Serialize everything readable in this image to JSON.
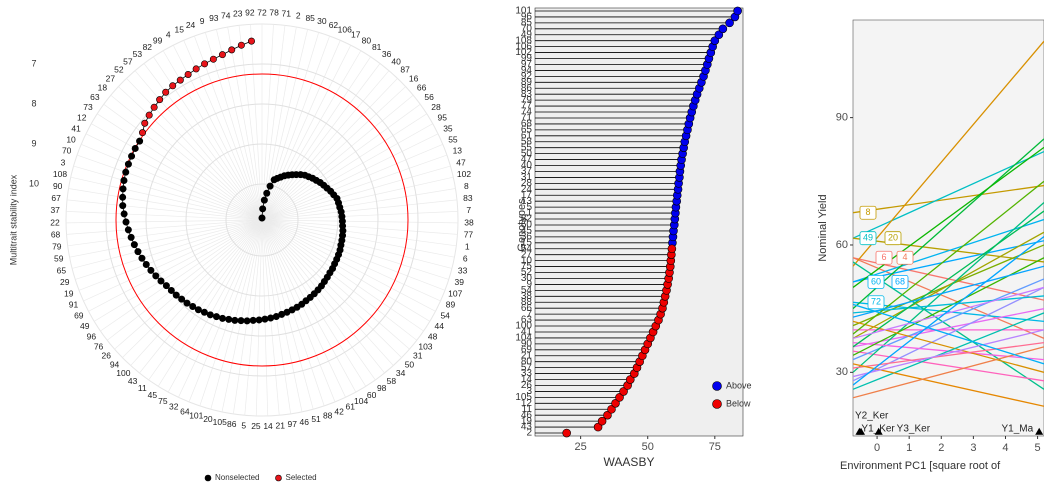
{
  "chart_data": [
    {
      "type": "polar",
      "ylabel": "Multitrait stability index",
      "categories": [
        "72",
        "78",
        "71",
        "2",
        "85",
        "30",
        "62",
        "106",
        "17",
        "80",
        "81",
        "36",
        "40",
        "87",
        "16",
        "66",
        "56",
        "28",
        "95",
        "35",
        "55",
        "13",
        "47",
        "102",
        "8",
        "83",
        "7",
        "38",
        "77",
        "1",
        "6",
        "33",
        "39",
        "107",
        "89",
        "54",
        "44",
        "48",
        "103",
        "31",
        "50",
        "34",
        "58",
        "98",
        "60",
        "104",
        "61",
        "42",
        "88",
        "51",
        "46",
        "97",
        "21",
        "14",
        "25",
        "5",
        "86",
        "105",
        "20",
        "101",
        "64",
        "32",
        "75",
        "45",
        "11",
        "43",
        "100",
        "94",
        "26",
        "76",
        "96",
        "49",
        "69",
        "91",
        "19",
        "29",
        "65",
        "59",
        "79",
        "68",
        "22",
        "37",
        "67",
        "90",
        "108",
        "3",
        "70",
        "10",
        "41",
        "12",
        "73",
        "63",
        "18",
        "27",
        "52",
        "57",
        "53",
        "82",
        "99",
        "4",
        "15",
        "24",
        "9",
        "93",
        "74",
        "23",
        "92"
      ],
      "series": [
        {
          "name": "Nonselected",
          "color": "#000000",
          "values": [
            10.85,
            10.62,
            10.4,
            10.22,
            10.03,
            9.85,
            9.79,
            9.73,
            9.66,
            9.6,
            9.54,
            9.48,
            9.41,
            9.35,
            9.31,
            9.26,
            9.22,
            9.17,
            9.13,
            9.09,
            9.04,
            9.0,
            8.95,
            8.94,
            8.93,
            8.91,
            8.9,
            8.89,
            8.88,
            8.86,
            8.85,
            8.84,
            8.83,
            8.81,
            8.8,
            8.79,
            8.78,
            8.76,
            8.75,
            8.73,
            8.71,
            8.68,
            8.66,
            8.64,
            8.62,
            8.6,
            8.57,
            8.55,
            8.53,
            8.51,
            8.49,
            8.46,
            8.44,
            8.42,
            8.4,
            8.38,
            8.35,
            8.33,
            8.3,
            8.28,
            8.25,
            8.23,
            8.2,
            8.18,
            8.15,
            8.13,
            8.1,
            8.08,
            8.05,
            8.03,
            8.0,
            7.95,
            7.9,
            7.85,
            7.8,
            7.75,
            7.7,
            7.65,
            7.6,
            7.55,
            7.5,
            7.45,
            7.4,
            7.37,
            7.34,
            7.31,
            7.29,
            7.28,
            7.27,
            7.26,
            7.26,
            null,
            null,
            null,
            null,
            null,
            null,
            null,
            null,
            null,
            null,
            null,
            null,
            null,
            null,
            null,
            null
          ]
        },
        {
          "name": "Selected",
          "color": "#e8151b",
          "values": [
            null,
            null,
            null,
            null,
            null,
            null,
            null,
            null,
            null,
            null,
            null,
            null,
            null,
            null,
            null,
            null,
            null,
            null,
            null,
            null,
            null,
            null,
            null,
            null,
            null,
            null,
            null,
            null,
            null,
            null,
            null,
            null,
            null,
            null,
            null,
            null,
            null,
            null,
            null,
            null,
            null,
            null,
            null,
            null,
            null,
            null,
            null,
            null,
            null,
            null,
            null,
            null,
            null,
            null,
            null,
            null,
            null,
            null,
            null,
            null,
            null,
            null,
            null,
            null,
            null,
            null,
            null,
            null,
            null,
            null,
            null,
            null,
            null,
            null,
            null,
            null,
            null,
            null,
            null,
            null,
            null,
            null,
            null,
            null,
            null,
            null,
            null,
            null,
            null,
            null,
            null,
            7.2,
            7.1,
            7.05,
            7.0,
            6.95,
            6.9,
            6.87,
            6.85,
            6.82,
            6.78,
            6.74,
            6.7,
            6.65,
            6.58,
            6.5,
            6.42
          ]
        }
      ],
      "ylim": [
        10.9,
        6
      ],
      "yticks": [
        7,
        8,
        9,
        10
      ],
      "cutoff": 7.25,
      "cutoff_color": "#ff0000",
      "legend": "bottom"
    },
    {
      "type": "dotplot",
      "xlabel": "WAASBY",
      "ylabel": "Genotypes",
      "categories": [
        "2",
        "43",
        "19",
        "46",
        "11",
        "12",
        "105",
        "3",
        "26",
        "14",
        "33",
        "57",
        "80",
        "21",
        "69",
        "90",
        "104",
        "41",
        "100",
        "63",
        "7",
        "66",
        "88",
        "38",
        "54",
        "9",
        "30",
        "52",
        "75",
        "10",
        "27",
        "64",
        "15",
        "36",
        "45",
        "60",
        "82",
        "1",
        "5",
        "13",
        "17",
        "24",
        "28",
        "31",
        "37",
        "40",
        "47",
        "50",
        "55",
        "58",
        "61",
        "65",
        "68",
        "71",
        "74",
        "77",
        "79",
        "83",
        "86",
        "89",
        "92",
        "94",
        "97",
        "99",
        "102",
        "106",
        "108",
        "49",
        "70",
        "85",
        "96",
        "101"
      ],
      "series": [
        {
          "name": "Above",
          "color": "#0000ee",
          "values": [
            null,
            null,
            null,
            null,
            null,
            null,
            null,
            null,
            null,
            null,
            null,
            null,
            null,
            null,
            null,
            null,
            null,
            null,
            null,
            null,
            null,
            null,
            null,
            null,
            null,
            null,
            null,
            null,
            null,
            null,
            null,
            null,
            59.2,
            59.4,
            59.6,
            59.9,
            60.1,
            60.3,
            60.5,
            60.8,
            61,
            61.3,
            61.5,
            61.8,
            62,
            62.3,
            62.6,
            63,
            63.4,
            63.8,
            64.3,
            64.8,
            65.3,
            65.8,
            66.4,
            67,
            67.7,
            68.4,
            69.2,
            70,
            70.8,
            71.5,
            72.2,
            72.8,
            73.5,
            74.2,
            75,
            76.5,
            78,
            80.5,
            82.5,
            83.5
          ]
        },
        {
          "name": "Below",
          "color": "#ee0000",
          "values": [
            19.8,
            31.5,
            33,
            35,
            36.5,
            38,
            39.5,
            41,
            42.5,
            43.5,
            45,
            46,
            47,
            48,
            49,
            50,
            51,
            52,
            53,
            54,
            54.8,
            55.5,
            56,
            56.5,
            57,
            57.4,
            57.8,
            58.1,
            58.4,
            58.6,
            58.8,
            59,
            null,
            null,
            null,
            null,
            null,
            null,
            null,
            null,
            null,
            null,
            null,
            null,
            null,
            null,
            null,
            null,
            null,
            null,
            null,
            null,
            null,
            null,
            null,
            null,
            null,
            null,
            null,
            null,
            null,
            null,
            null,
            null,
            null,
            null,
            null,
            null,
            null,
            null,
            null,
            null
          ]
        }
      ],
      "xlim": [
        8,
        85.5
      ],
      "xticks": [
        25,
        50,
        75
      ],
      "legend": "bottom-right"
    },
    {
      "type": "line",
      "xlabel": "Environment PC1 [square root of",
      "ylabel": "Nominal Yield",
      "x": [
        -0.75,
        5.2
      ],
      "series": [
        {
          "name": "8",
          "color": "#c49a00",
          "values": [
            67.6,
            74
          ]
        },
        {
          "name": "49",
          "color": "#00bfc4",
          "values": [
            61.6,
            82
          ]
        },
        {
          "name": "20",
          "color": "#b79f00",
          "values": [
            61.6,
            56
          ]
        },
        {
          "name": "6",
          "color": "#f8766d",
          "values": [
            57,
            47
          ]
        },
        {
          "name": "4",
          "color": "#f37b59",
          "values": [
            57,
            38
          ]
        },
        {
          "name": "60",
          "color": "#00b4f0",
          "values": [
            51.3,
            66
          ]
        },
        {
          "name": "68",
          "color": "#00a9ff",
          "values": [
            51.3,
            61
          ]
        },
        {
          "name": "72",
          "color": "#00b8e7",
          "values": [
            46.5,
            42
          ]
        },
        {
          "color": "#d89000",
          "values": [
            55,
            108
          ]
        },
        {
          "color": "#00c08b",
          "values": [
            56,
            26
          ]
        },
        {
          "color": "#00ba38",
          "values": [
            45,
            85
          ]
        },
        {
          "color": "#7cae00",
          "values": [
            41,
            60
          ]
        },
        {
          "color": "#a3a500",
          "values": [
            38,
            63
          ]
        },
        {
          "color": "#e76bf3",
          "values": [
            36,
            45
          ]
        },
        {
          "color": "#ff62bc",
          "values": [
            35,
            28
          ]
        },
        {
          "color": "#619cff",
          "values": [
            33,
            52
          ]
        },
        {
          "color": "#fd61d1",
          "values": [
            40,
            40
          ]
        },
        {
          "color": "#00bf7d",
          "values": [
            30,
            70
          ]
        },
        {
          "color": "#9590ff",
          "values": [
            28,
            50
          ]
        },
        {
          "color": "#f564e3",
          "values": [
            37,
            33
          ]
        },
        {
          "color": "#39b600",
          "values": [
            34,
            57
          ]
        },
        {
          "color": "#d89000",
          "values": [
            42,
            30
          ]
        },
        {
          "color": "#00c0af",
          "values": [
            26,
            44
          ]
        },
        {
          "color": "#ff6c91",
          "values": [
            31,
            37
          ]
        },
        {
          "color": "#00bcd8",
          "values": [
            44,
            48
          ]
        },
        {
          "color": "#53b400",
          "values": [
            39,
            75
          ]
        },
        {
          "color": "#e58700",
          "values": [
            32,
            22
          ]
        },
        {
          "color": "#00bc56",
          "values": [
            36,
            68
          ]
        },
        {
          "color": "#b983ff",
          "values": [
            29,
            40
          ]
        },
        {
          "color": "#06a4ff",
          "values": [
            43,
            55
          ]
        },
        {
          "color": "#ef7f49",
          "values": [
            24,
            36
          ]
        },
        {
          "color": "#c77cff",
          "values": [
            38,
            50
          ]
        },
        {
          "color": "#00b0f6",
          "values": [
            46,
            32
          ]
        },
        {
          "color": "#00a5ff",
          "values": [
            27,
            62
          ]
        },
        {
          "color": "#0cb702",
          "values": [
            50,
            83
          ]
        }
      ],
      "xlim": [
        -0.75,
        5.2
      ],
      "ylim": [
        15,
        113
      ],
      "xticks": [
        0,
        1,
        2,
        3,
        4,
        5
      ],
      "yticks": [
        30,
        60,
        90
      ],
      "environments": [
        {
          "label": "Y2_Ker",
          "x": -0.5,
          "y": 16
        },
        {
          "label": "Y1_Ker",
          "x": -0.55,
          "y": 16
        },
        {
          "label": "Y3_Ker",
          "x": 0.05,
          "y": 16
        },
        {
          "label": "Y1_Ma",
          "x": 5.05,
          "y": 16
        }
      ]
    }
  ]
}
